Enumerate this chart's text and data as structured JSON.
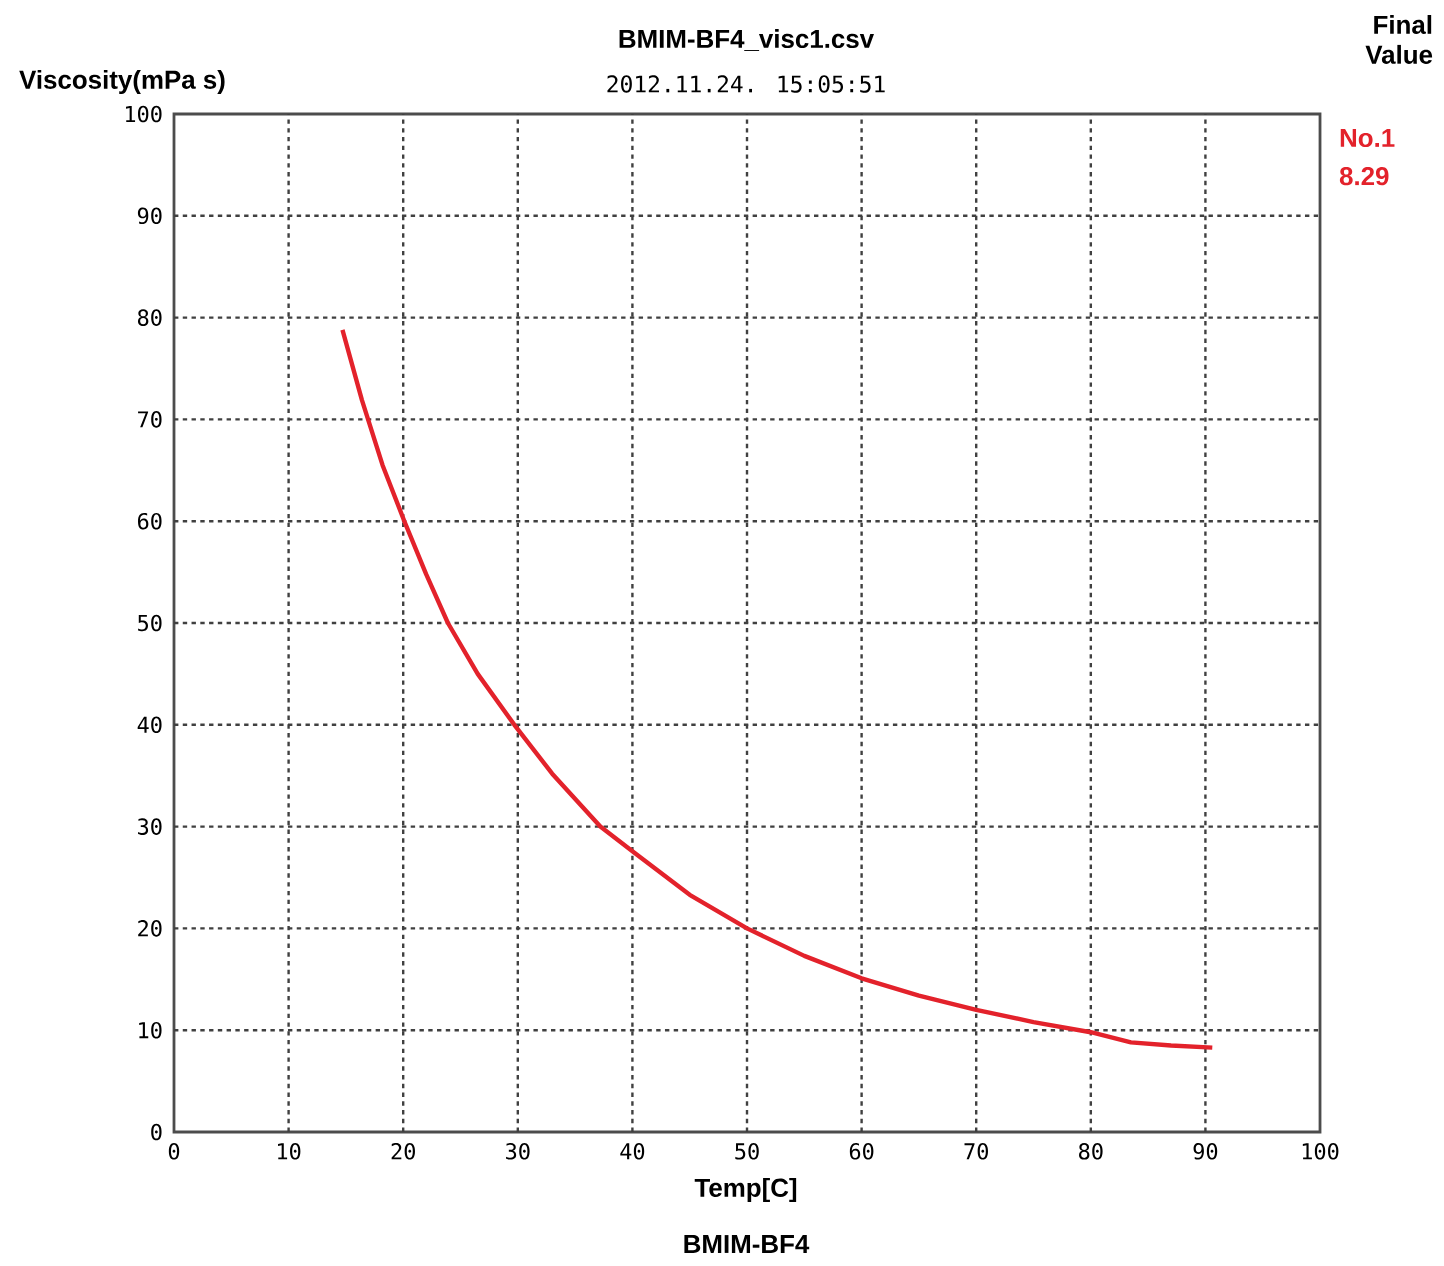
{
  "chart_data": {
    "type": "line",
    "title": "BMIM-BF4_visc1.csv",
    "subtitle": "2012.11.24. 15:05:51",
    "xlabel": "Temp[C]",
    "ylabel": "Viscosity(mPa s)",
    "annotations": [
      "Final Value",
      "8.29",
      "BMIM-BF4"
    ],
    "xlim": [
      0,
      100
    ],
    "ylim": [
      0,
      100
    ],
    "xticks": [
      0,
      10,
      20,
      30,
      40,
      50,
      60,
      70,
      80,
      90,
      100
    ],
    "yticks": [
      0,
      10,
      20,
      30,
      40,
      50,
      60,
      70,
      80,
      90,
      100
    ],
    "grid": true,
    "line_style": "solid",
    "series": [
      {
        "name": "No.1",
        "color": "#e3222b",
        "x": [
          14.7,
          16.4,
          18.2,
          20.1,
          22.0,
          23.9,
          26.5,
          29.7,
          33.0,
          37.2,
          40.2,
          45.0,
          50.0,
          55.0,
          60.0,
          65.0,
          70.0,
          75.0,
          80.0,
          83.5,
          87.0,
          90.6
        ],
        "values": [
          78.8,
          71.9,
          65.5,
          60.0,
          54.8,
          50.0,
          45.0,
          40.0,
          35.2,
          30.0,
          27.4,
          23.3,
          20.0,
          17.3,
          15.1,
          13.4,
          12.0,
          10.8,
          9.8,
          8.8,
          8.5,
          8.29
        ]
      }
    ]
  }
}
